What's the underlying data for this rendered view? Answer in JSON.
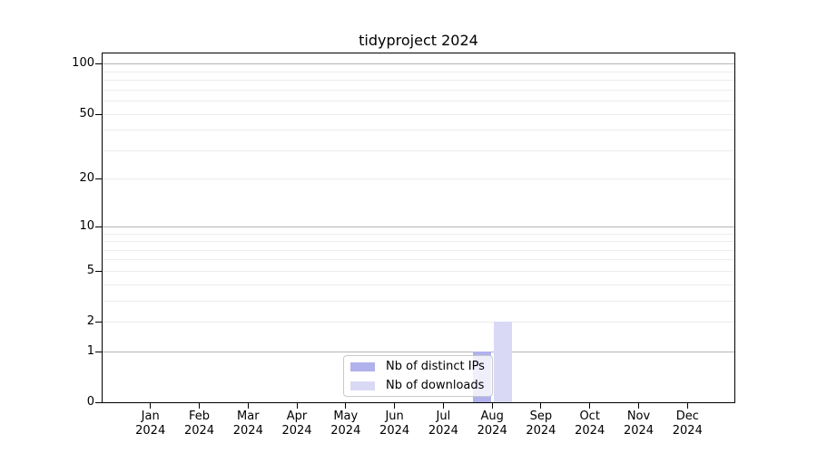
{
  "chart_data": {
    "type": "bar",
    "title": "tidyproject 2024",
    "x": {
      "months": [
        {
          "m": "Jan",
          "y": "2024"
        },
        {
          "m": "Feb",
          "y": "2024"
        },
        {
          "m": "Mar",
          "y": "2024"
        },
        {
          "m": "Apr",
          "y": "2024"
        },
        {
          "m": "May",
          "y": "2024"
        },
        {
          "m": "Jun",
          "y": "2024"
        },
        {
          "m": "Jul",
          "y": "2024"
        },
        {
          "m": "Aug",
          "y": "2024"
        },
        {
          "m": "Sep",
          "y": "2024"
        },
        {
          "m": "Oct",
          "y": "2024"
        },
        {
          "m": "Nov",
          "y": "2024"
        },
        {
          "m": "Dec",
          "y": "2024"
        }
      ]
    },
    "y": {
      "scale": "log1p",
      "tick_values": [
        100,
        50,
        20,
        10,
        5,
        2,
        1,
        0
      ],
      "decade_gridlines": [
        1,
        10,
        100
      ],
      "minor_gridlines": [
        2,
        3,
        4,
        5,
        6,
        7,
        8,
        9,
        20,
        30,
        40,
        50,
        60,
        70,
        80,
        90
      ],
      "ymax": 115
    },
    "series": [
      {
        "name": "Nb of distinct IPs",
        "color": "#b1b1ec",
        "values": [
          0,
          0,
          0,
          0,
          0,
          0,
          0,
          1,
          0,
          0,
          0,
          0
        ]
      },
      {
        "name": "Nb of downloads",
        "color": "#d9d9f6",
        "values": [
          0,
          0,
          0,
          0,
          0,
          0,
          0,
          2,
          0,
          0,
          0,
          0
        ]
      }
    ],
    "legend_position": "inside bottom center",
    "grid": true
  },
  "legend": {
    "items": [
      {
        "label": "Nb of distinct IPs",
        "color": "#b1b1ec"
      },
      {
        "label": "Nb of downloads",
        "color": "#d9d9f6"
      }
    ]
  },
  "colors": {
    "decade_grid": "#b5b5b5",
    "minor_grid": "#ececec",
    "axis": "#000000",
    "background": "#ffffff",
    "legend_border": "#c9c9c9"
  }
}
